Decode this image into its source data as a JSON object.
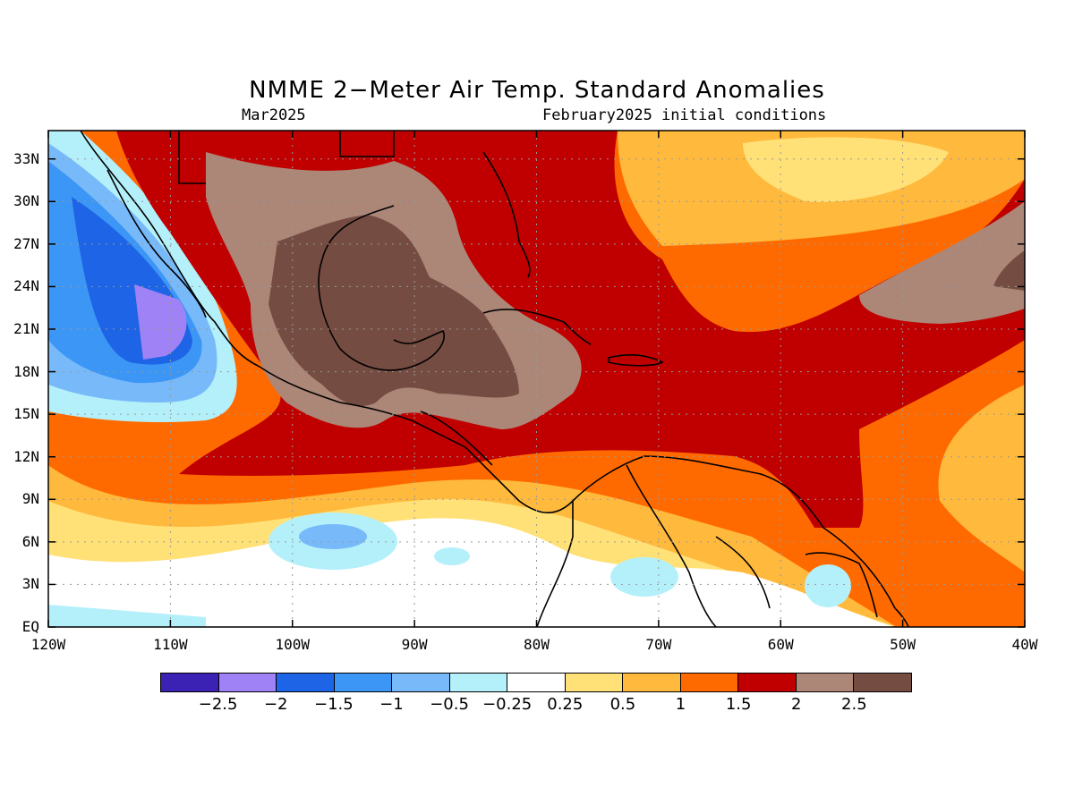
{
  "title": "NMME 2−Meter Air Temp. Standard Anomalies",
  "subtitle_left": "Mar2025",
  "subtitle_right": "February2025 initial conditions",
  "map": {
    "lon_range": [
      -120,
      -40
    ],
    "lat_range": [
      0,
      35
    ],
    "grid": "dotted",
    "lat_ticks": [
      {
        "value": 33,
        "label": "33N"
      },
      {
        "value": 30,
        "label": "30N"
      },
      {
        "value": 27,
        "label": "27N"
      },
      {
        "value": 24,
        "label": "24N"
      },
      {
        "value": 21,
        "label": "21N"
      },
      {
        "value": 18,
        "label": "18N"
      },
      {
        "value": 15,
        "label": "15N"
      },
      {
        "value": 12,
        "label": "12N"
      },
      {
        "value": 9,
        "label": "9N"
      },
      {
        "value": 6,
        "label": "6N"
      },
      {
        "value": 3,
        "label": "3N"
      },
      {
        "value": 0,
        "label": "EQ"
      }
    ],
    "lon_ticks": [
      {
        "value": -120,
        "label": "120W"
      },
      {
        "value": -110,
        "label": "110W"
      },
      {
        "value": -100,
        "label": "100W"
      },
      {
        "value": -90,
        "label": "90W"
      },
      {
        "value": -80,
        "label": "80W"
      },
      {
        "value": -70,
        "label": "70W"
      },
      {
        "value": -60,
        "label": "60W"
      },
      {
        "value": -50,
        "label": "50W"
      },
      {
        "value": -40,
        "label": "40W"
      }
    ]
  },
  "colorbar": {
    "colors": [
      "#3c22b4",
      "#9f82f5",
      "#1e64e6",
      "#3c96f5",
      "#78b9fa",
      "#b4f0fa",
      "#ffffff",
      "#ffe178",
      "#ffb93c",
      "#ff6a00",
      "#c00000",
      "#ac8677",
      "#754c42"
    ],
    "labels": [
      "−2.5",
      "−2",
      "−1.5",
      "−1",
      "−0.5",
      "−0.25",
      "0.25",
      "0.5",
      "1",
      "1.5",
      "2",
      "2.5"
    ]
  }
}
